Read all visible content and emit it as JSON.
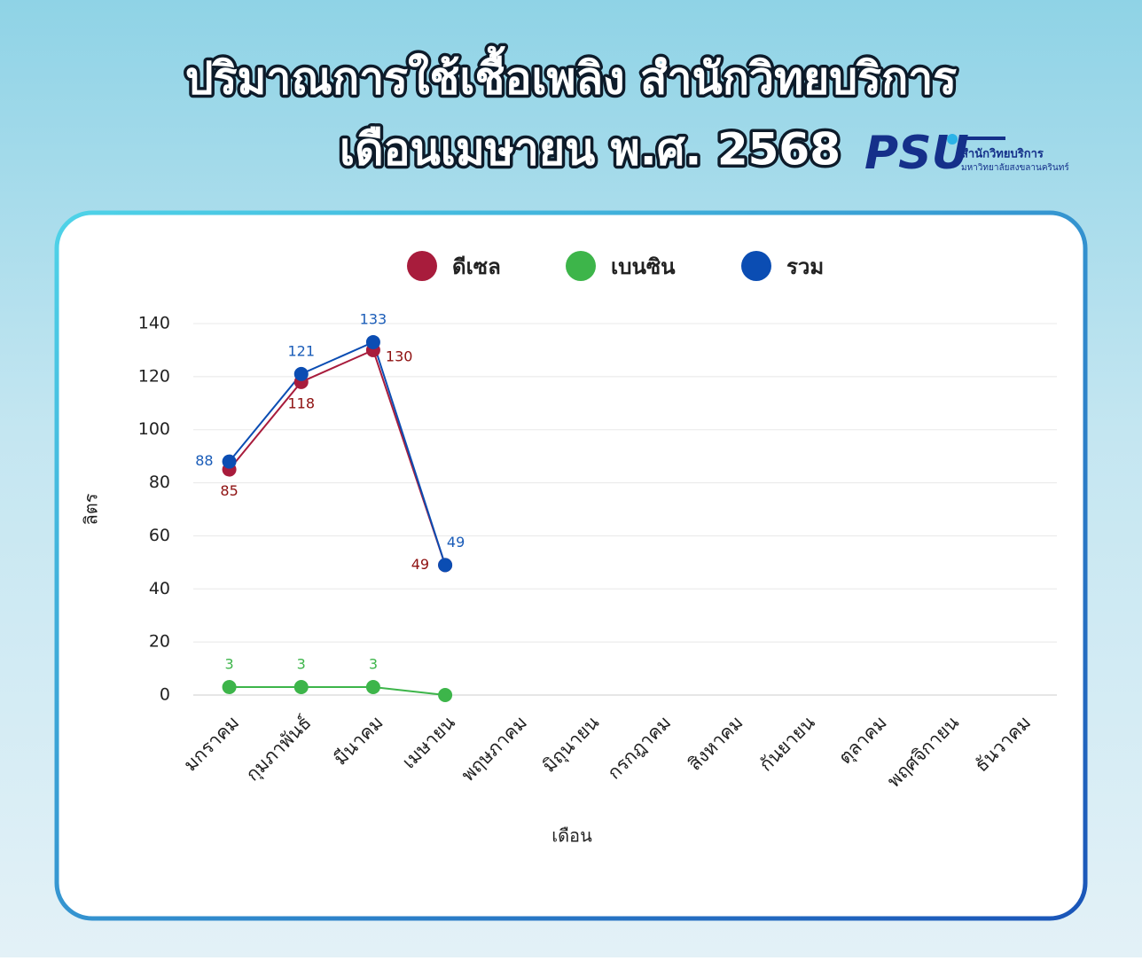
{
  "header": {
    "title_line1": "ปริมาณการใช้เชื้อเพลิง สำนักวิทยบริการ",
    "title_line2": "เดือนเมษายน พ.ศ. 2568"
  },
  "logo": {
    "mark": "PSU",
    "name": "สำนักวิทยบริการ",
    "university": "มหาวิทยาลัยสงขลานครินทร์"
  },
  "chart_data": {
    "type": "line",
    "xlabel": "เดือน",
    "ylabel": "ลิตร",
    "categories": [
      "มกราคม",
      "กุมภาพันธ์",
      "มีนาคม",
      "เมษายน",
      "พฤษภาคม",
      "มิถุนายน",
      "กรกฎาคม",
      "สิงหาคม",
      "กันยายน",
      "ตุลาคม",
      "พฤศจิกายน",
      "ธันวาคม"
    ],
    "series": [
      {
        "name": "ดีเซล",
        "color": "#a81c3c",
        "label_color": "#8e1010",
        "values": [
          85,
          118,
          130,
          49,
          null,
          null,
          null,
          null,
          null,
          null,
          null,
          null
        ]
      },
      {
        "name": "เบนซิน",
        "color": "#3db54a",
        "label_color": "#3db54a",
        "values": [
          3,
          3,
          3,
          0,
          null,
          null,
          null,
          null,
          null,
          null,
          null,
          null
        ],
        "value_labels": [
          "3",
          "3",
          "3",
          null,
          null,
          null,
          null,
          null,
          null,
          null,
          null,
          null
        ]
      },
      {
        "name": "รวม",
        "color": "#0b4db3",
        "label_color": "#1a5cb8",
        "values": [
          88,
          121,
          133,
          49,
          null,
          null,
          null,
          null,
          null,
          null,
          null,
          null
        ]
      }
    ],
    "ylim": [
      0,
      140
    ],
    "yticks": [
      0,
      20,
      40,
      60,
      80,
      100,
      120,
      140
    ],
    "grid": true,
    "legend": "top"
  }
}
